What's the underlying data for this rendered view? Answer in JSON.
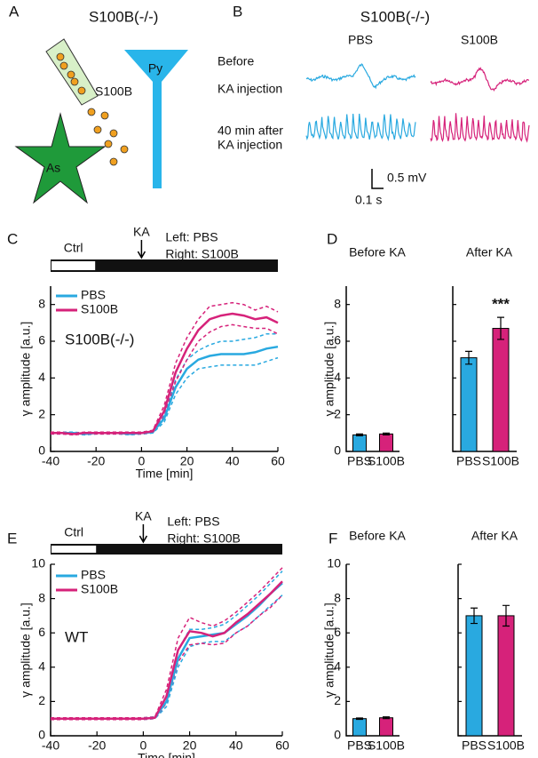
{
  "panel_a": {
    "letter": "A",
    "title": "S100B(-/-)",
    "tube_label": "S100B",
    "pyramidal_label": "Py",
    "astrocyte_label": "As"
  },
  "panel_b": {
    "letter": "B",
    "title": "S100B(-/-)",
    "columns": [
      "PBS",
      "S100B"
    ],
    "rows": [
      [
        "Before",
        "KA injection"
      ],
      [
        "40 min after",
        "KA injection"
      ]
    ],
    "scale_voltage": "0.5 mV",
    "scale_time": "0.1 s"
  },
  "chart_data": [
    {
      "type": "line",
      "letter": "C",
      "xlabel": "Time [min]",
      "ylabel": "γ amplitude [a.u.]",
      "annotation": "S100B(-/-)",
      "timeline": {
        "ctrl_label": "Ctrl",
        "ctrl_period": [
          -40,
          -20
        ],
        "event_label": "KA",
        "injection_time": 0,
        "notes": [
          "Left: PBS",
          "Right: S100B"
        ]
      },
      "xlim": [
        -40,
        60
      ],
      "xticks": [
        -40,
        -20,
        0,
        20,
        40,
        60
      ],
      "ylim": [
        0,
        9
      ],
      "yticks": [
        0,
        2,
        4,
        6,
        8
      ],
      "legend": "upper left",
      "x": [
        -40,
        -35,
        -30,
        -25,
        -20,
        -15,
        -10,
        -5,
        0,
        5,
        10,
        15,
        20,
        25,
        30,
        35,
        40,
        45,
        50,
        55,
        60
      ],
      "series": [
        {
          "name": "PBS",
          "color": "#29a9e0",
          "values": [
            1.0,
            1.0,
            1.0,
            0.95,
            1.0,
            1.0,
            1.0,
            0.95,
            1.0,
            1.05,
            1.8,
            3.5,
            4.5,
            5.0,
            5.2,
            5.3,
            5.3,
            5.3,
            5.4,
            5.6,
            5.7
          ],
          "upper": [
            1.05,
            1.05,
            1.05,
            1.0,
            1.05,
            1.05,
            1.05,
            1.0,
            1.05,
            1.1,
            2.0,
            3.9,
            5.0,
            5.5,
            5.8,
            6.0,
            6.0,
            6.1,
            6.2,
            6.4,
            6.4
          ],
          "lower": [
            0.95,
            0.95,
            0.95,
            0.9,
            0.95,
            0.95,
            0.95,
            0.9,
            0.95,
            1.0,
            1.6,
            3.1,
            4.0,
            4.5,
            4.6,
            4.7,
            4.7,
            4.7,
            4.7,
            4.9,
            5.1
          ]
        },
        {
          "name": "S100B",
          "color": "#d6227a",
          "values": [
            1.0,
            1.0,
            0.95,
            1.0,
            1.0,
            1.0,
            1.0,
            1.0,
            1.0,
            1.1,
            2.2,
            4.3,
            5.6,
            6.6,
            7.2,
            7.4,
            7.5,
            7.4,
            7.2,
            7.3,
            7.0
          ],
          "upper": [
            1.05,
            1.05,
            1.0,
            1.05,
            1.05,
            1.05,
            1.05,
            1.05,
            1.05,
            1.15,
            2.5,
            4.8,
            6.2,
            7.2,
            7.9,
            8.0,
            8.1,
            8.0,
            7.7,
            7.9,
            7.6
          ],
          "lower": [
            0.95,
            0.95,
            0.9,
            0.95,
            0.95,
            0.95,
            0.95,
            0.95,
            0.95,
            1.05,
            1.9,
            3.8,
            5.0,
            6.0,
            6.5,
            6.8,
            6.9,
            6.8,
            6.7,
            6.7,
            6.4
          ]
        }
      ]
    },
    {
      "type": "bar",
      "letter": "D",
      "ylabel": "γ amplitude [a.u.]",
      "ylim": [
        0,
        9
      ],
      "yticks": [
        0,
        2,
        4,
        6,
        8
      ],
      "colors": [
        "#29a9e0",
        "#d6227a"
      ],
      "subplots": [
        {
          "title": "Before KA",
          "categories": [
            "PBS",
            "S100B"
          ],
          "values": [
            0.9,
            0.95
          ],
          "errors": [
            0.05,
            0.05
          ]
        },
        {
          "title": "After KA",
          "categories": [
            "PBS",
            "S100B"
          ],
          "values": [
            5.1,
            6.7
          ],
          "errors": [
            0.35,
            0.6
          ],
          "annotation": "***"
        }
      ]
    },
    {
      "type": "line",
      "letter": "E",
      "xlabel": "Time [min]",
      "ylabel": "γ amplitude [a.u.]",
      "annotation": "WT",
      "timeline": {
        "ctrl_label": "Ctrl",
        "ctrl_period": [
          -40,
          -20
        ],
        "event_label": "KA",
        "injection_time": 0,
        "notes": [
          "Left: PBS",
          "Right: S100B"
        ]
      },
      "xlim": [
        -40,
        60
      ],
      "xticks": [
        -40,
        -20,
        0,
        20,
        40,
        60
      ],
      "ylim": [
        0,
        10
      ],
      "yticks": [
        0,
        2,
        4,
        6,
        8,
        10
      ],
      "legend": "upper left",
      "x": [
        -40,
        -35,
        -30,
        -25,
        -20,
        -15,
        -10,
        -5,
        0,
        5,
        10,
        15,
        20,
        25,
        30,
        35,
        40,
        45,
        50,
        55,
        60
      ],
      "series": [
        {
          "name": "PBS",
          "color": "#29a9e0",
          "values": [
            1.0,
            1.0,
            1.0,
            1.0,
            1.0,
            1.0,
            1.0,
            1.0,
            1.0,
            1.05,
            2.0,
            4.5,
            5.7,
            5.8,
            5.9,
            6.0,
            6.5,
            7.0,
            7.6,
            8.3,
            8.9
          ],
          "upper": [
            1.05,
            1.05,
            1.05,
            1.05,
            1.05,
            1.05,
            1.05,
            1.05,
            1.05,
            1.1,
            2.3,
            5.0,
            6.2,
            6.2,
            6.3,
            6.5,
            7.0,
            7.6,
            8.2,
            8.9,
            9.6
          ],
          "lower": [
            0.95,
            0.95,
            0.95,
            0.95,
            0.95,
            0.95,
            0.95,
            0.95,
            0.95,
            1.0,
            1.7,
            4.0,
            5.2,
            5.4,
            5.5,
            5.5,
            6.0,
            6.4,
            7.0,
            7.6,
            8.2
          ]
        },
        {
          "name": "S100B",
          "color": "#d6227a",
          "values": [
            1.0,
            1.0,
            1.0,
            1.0,
            1.0,
            1.0,
            1.0,
            1.0,
            1.0,
            1.05,
            2.3,
            5.0,
            6.1,
            6.0,
            5.8,
            6.0,
            6.6,
            7.1,
            7.7,
            8.3,
            9.0
          ],
          "upper": [
            1.05,
            1.05,
            1.05,
            1.05,
            1.05,
            1.05,
            1.05,
            1.05,
            1.05,
            1.1,
            2.7,
            5.7,
            6.9,
            6.6,
            6.4,
            6.7,
            7.2,
            7.8,
            8.4,
            9.1,
            9.8
          ],
          "lower": [
            0.95,
            0.95,
            0.95,
            0.95,
            0.95,
            0.95,
            0.95,
            0.95,
            0.95,
            1.0,
            1.9,
            4.3,
            5.3,
            5.4,
            5.3,
            5.4,
            6.0,
            6.4,
            7.0,
            7.5,
            8.2
          ]
        }
      ]
    },
    {
      "type": "bar",
      "letter": "F",
      "ylabel": "γ amplitude [a.u.]",
      "ylim": [
        0,
        10
      ],
      "yticks": [
        0,
        2,
        4,
        6,
        8,
        10
      ],
      "colors": [
        "#29a9e0",
        "#d6227a"
      ],
      "subplots": [
        {
          "title": "Before KA",
          "categories": [
            "PBS",
            "S100B"
          ],
          "values": [
            1.0,
            1.05
          ],
          "errors": [
            0.04,
            0.05
          ]
        },
        {
          "title": "After KA",
          "categories": [
            "PBS",
            "S100B"
          ],
          "values": [
            7.0,
            7.0
          ],
          "errors": [
            0.45,
            0.6
          ]
        }
      ]
    }
  ]
}
